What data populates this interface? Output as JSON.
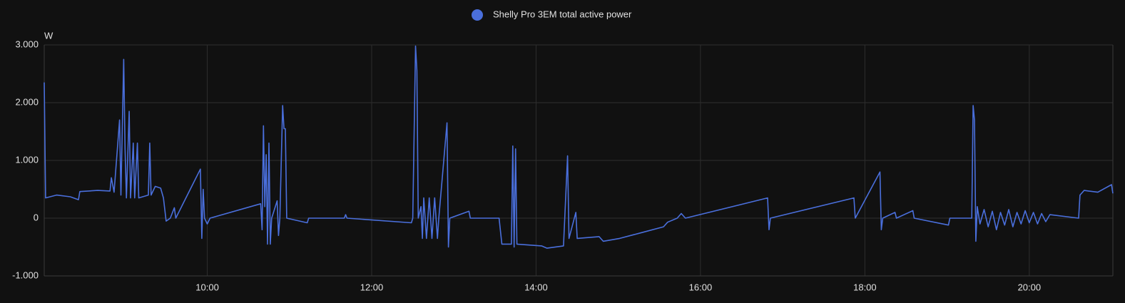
{
  "chart_data": {
    "type": "line",
    "y_label": "W",
    "series": [
      {
        "name": "Shelly Pro 3EM total active power",
        "color": "#4a6fdc",
        "x": [
          "08:01",
          "08:02",
          "08:10",
          "08:20",
          "08:26",
          "08:27",
          "08:40",
          "08:49",
          "08:50",
          "08:52",
          "08:56",
          "08:57",
          "08:59",
          "09:00",
          "09:01",
          "09:03",
          "09:04",
          "09:06",
          "09:07",
          "09:09",
          "09:10",
          "09:17",
          "09:18",
          "09:19",
          "09:22",
          "09:26",
          "09:28",
          "09:30",
          "09:33",
          "09:36",
          "09:37",
          "09:55",
          "09:56",
          "09:57",
          "09:58",
          "10:00",
          "10:02",
          "10:39",
          "10:40",
          "10:41",
          "10:42",
          "10:43",
          "10:44",
          "10:45",
          "10:46",
          "10:47",
          "10:51",
          "10:52",
          "10:53",
          "10:55",
          "10:56",
          "10:57",
          "10:58",
          "11:13",
          "11:14",
          "11:40",
          "11:41",
          "11:42",
          "12:29",
          "12:30",
          "12:32",
          "12:33",
          "12:34",
          "12:36",
          "12:37",
          "12:38",
          "12:40",
          "12:42",
          "12:44",
          "12:46",
          "12:48",
          "12:49",
          "12:55",
          "12:56",
          "12:57",
          "13:11",
          "13:12",
          "13:33",
          "13:35",
          "13:42",
          "13:43",
          "13:44",
          "13:45",
          "13:46",
          "14:04",
          "14:08",
          "14:20",
          "14:23",
          "14:24",
          "14:29",
          "14:30",
          "14:46",
          "14:49",
          "15:01",
          "15:17",
          "15:33",
          "15:36",
          "15:43",
          "15:46",
          "15:49",
          "16:49",
          "16:50",
          "16:51",
          "17:52",
          "17:53",
          "18:11",
          "18:12",
          "18:13",
          "18:22",
          "18:23",
          "18:35",
          "18:36",
          "19:01",
          "19:02",
          "19:18",
          "19:19",
          "19:20",
          "19:21",
          "19:22",
          "19:24",
          "19:27",
          "19:30",
          "19:33",
          "19:36",
          "19:39",
          "19:42",
          "19:45",
          "19:48",
          "19:51",
          "19:54",
          "19:57",
          "20:00",
          "20:03",
          "20:06",
          "20:09",
          "20:12",
          "20:15",
          "20:36",
          "20:37",
          "20:40",
          "20:50",
          "21:00",
          "21:01"
        ],
        "values": [
          2350,
          350,
          400,
          370,
          320,
          460,
          480,
          470,
          700,
          450,
          1700,
          400,
          2750,
          1200,
          350,
          1850,
          350,
          1300,
          350,
          1300,
          350,
          400,
          1300,
          400,
          550,
          520,
          350,
          -50,
          0,
          180,
          0,
          850,
          -350,
          500,
          0,
          -100,
          0,
          250,
          -200,
          1600,
          200,
          1100,
          -450,
          1300,
          -450,
          0,
          300,
          -300,
          0,
          1950,
          1550,
          1550,
          0,
          -80,
          0,
          0,
          60,
          0,
          -80,
          0,
          2980,
          2550,
          0,
          200,
          -350,
          350,
          -350,
          350,
          -350,
          350,
          -350,
          0,
          1650,
          -500,
          0,
          120,
          0,
          0,
          -450,
          -450,
          1250,
          -500,
          1200,
          -450,
          -480,
          -520,
          -480,
          1080,
          -350,
          100,
          -350,
          -320,
          -400,
          -350,
          -250,
          -150,
          -70,
          0,
          80,
          0,
          350,
          -200,
          0,
          350,
          0,
          800,
          -200,
          0,
          100,
          0,
          130,
          0,
          -120,
          0,
          0,
          1950,
          1700,
          -400,
          200,
          -100,
          150,
          -150,
          120,
          -200,
          100,
          -120,
          150,
          -150,
          100,
          -100,
          130,
          -80,
          100,
          -100,
          80,
          -60,
          60,
          0,
          400,
          480,
          450,
          580,
          430
        ]
      }
    ],
    "xlim": [
      "08:01",
      "21:01"
    ],
    "xticks": [
      "10:00",
      "12:00",
      "14:00",
      "16:00",
      "18:00",
      "20:00"
    ],
    "ylim": [
      -1000,
      3000
    ],
    "yticks": [
      {
        "value": -1000,
        "label": "-1.000"
      },
      0,
      {
        "value": 1000,
        "label": "1.000"
      },
      {
        "value": 2000,
        "label": "2.000"
      },
      {
        "value": 3000,
        "label": "3.000"
      }
    ],
    "grid": true
  }
}
